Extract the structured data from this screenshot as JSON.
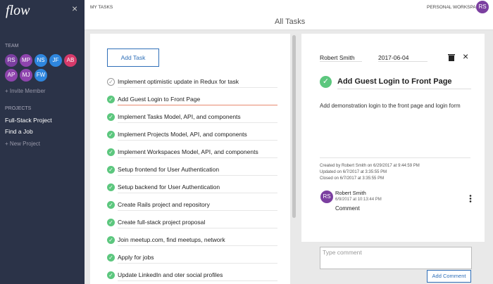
{
  "sidebar": {
    "logo": "flow",
    "close": "×",
    "team_label": "TEAM",
    "team": [
      {
        "initials": "RS",
        "color": "#7b3fa0"
      },
      {
        "initials": "MP",
        "color": "#8e44ad"
      },
      {
        "initials": "NS",
        "color": "#2e86de"
      },
      {
        "initials": "JF",
        "color": "#2e86de"
      },
      {
        "initials": "AB",
        "color": "#d63a6a"
      },
      {
        "initials": "AP",
        "color": "#8e44ad"
      },
      {
        "initials": "MJ",
        "color": "#8e44ad"
      },
      {
        "initials": "FW",
        "color": "#2e86de"
      }
    ],
    "invite": "+ Invite Member",
    "projects_label": "PROJECTS",
    "projects": [
      "Full-Stack Project",
      "Find a Job"
    ],
    "new_project": "+ New Project"
  },
  "header": {
    "left": "MY TASKS",
    "right": "PERSONAL WORKSPACE",
    "avatar": "RS",
    "title": "All Tasks"
  },
  "task_list": {
    "add_button": "Add Task",
    "tasks": [
      {
        "name": "Implement optimistic update in Redux for task",
        "done": false
      },
      {
        "name": "Add Guest Login to Front Page",
        "done": true,
        "selected": true
      },
      {
        "name": "Implement Tasks Model, API, and components",
        "done": true
      },
      {
        "name": "Implement Projects Model, API, and components",
        "done": true
      },
      {
        "name": "Implement Workspaces Model, API, and components",
        "done": true
      },
      {
        "name": "Setup frontend for User Authentication",
        "done": true
      },
      {
        "name": "Setup backend for User Authentication",
        "done": true
      },
      {
        "name": "Create Rails project and repository",
        "done": true
      },
      {
        "name": "Create full-stack project proposal",
        "done": true
      },
      {
        "name": "Join meetup.com, find meetups, network",
        "done": true
      },
      {
        "name": "Apply for jobs",
        "done": true
      },
      {
        "name": "Update LinkedIn and oter social profiles",
        "done": true
      }
    ]
  },
  "detail": {
    "assignee": "Robert Smith",
    "due_date": "2017-06-04",
    "close": "×",
    "title": "Add Guest Login to Front Page",
    "description": "Add demonstration login to the front page and login form",
    "history": [
      "Created by Robert Smith on 6/29/2017 at 9:44:59 PM",
      "Updated on 6/7/2017 at 3:35:55 PM",
      "Closed on 6/7/2017 at 3:35:55 PM"
    ],
    "comment": {
      "avatar": "RS",
      "author": "Robert Smith",
      "date": "6/9/2017 at 10:13:44 PM",
      "text": "Comment"
    },
    "comment_placeholder": "Type comment",
    "comment_button": "Add Comment"
  }
}
